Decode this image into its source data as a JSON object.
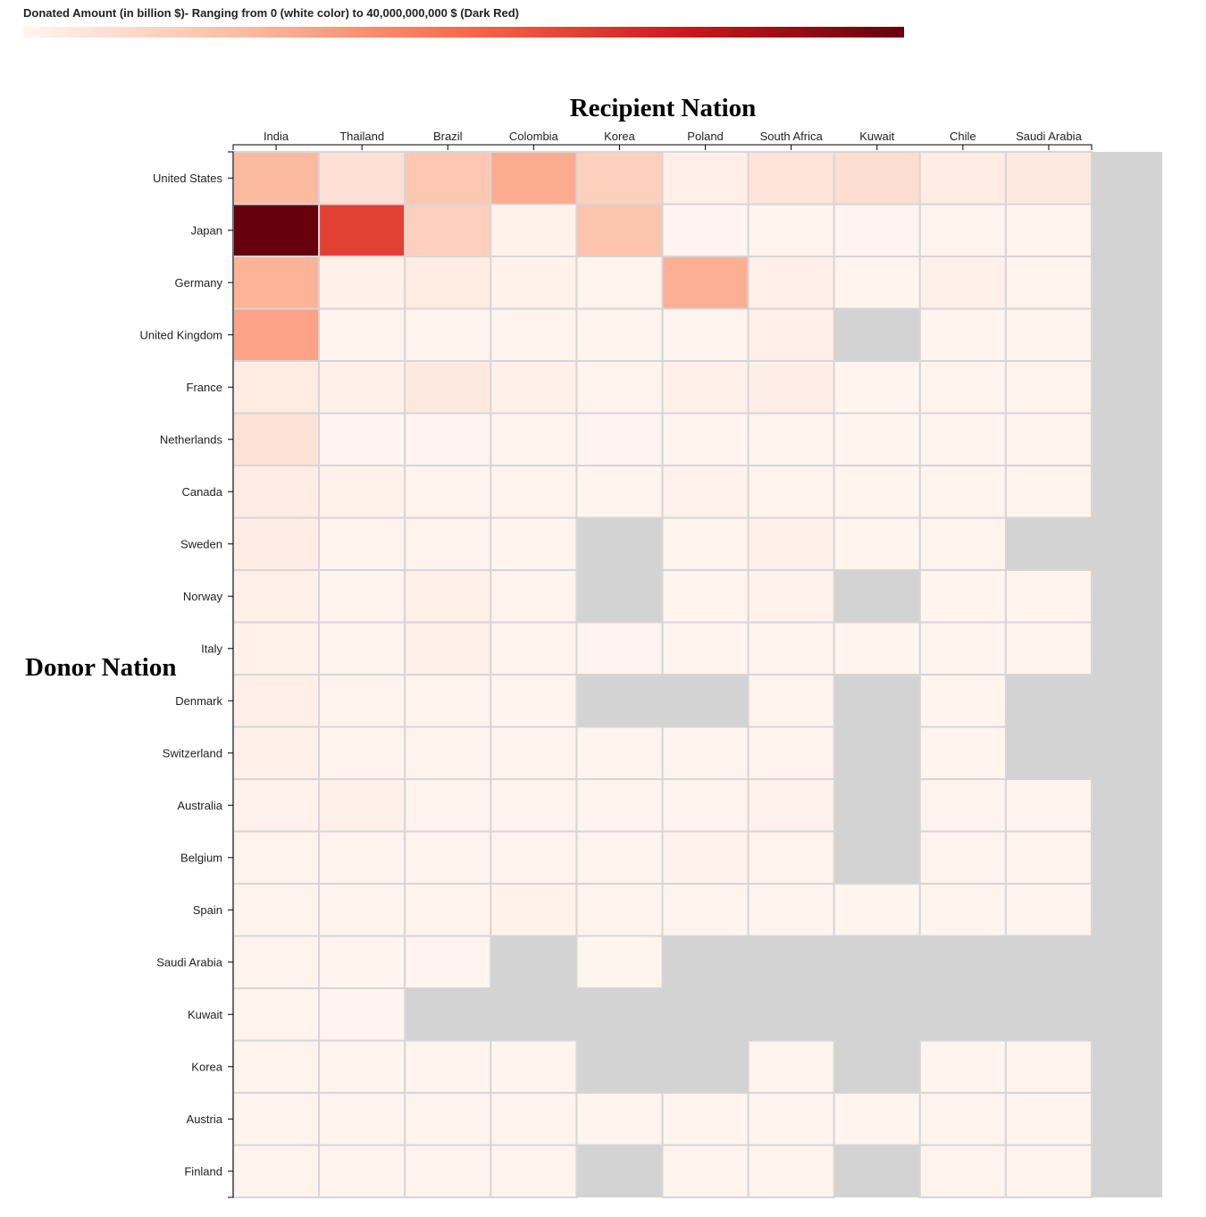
{
  "legend": {
    "title": "Donated Amount (in billion $)- Ranging from 0 (white color) to 40,000,000,000 $ (Dark Red)",
    "min_color": "#fff5f0",
    "max_color": "#67000d"
  },
  "chart_data": {
    "type": "heatmap",
    "title": "",
    "xlabel": "Recipient Nation",
    "ylabel": "Donor Nation",
    "color_scale": {
      "min": 0,
      "max": 40000000000,
      "colors": [
        "#fff5f0",
        "#fcbba1",
        "#fb6a4a",
        "#cb181d",
        "#67000d"
      ]
    },
    "missing_color": "#d3d3d3",
    "x_categories": [
      "India",
      "Thailand",
      "Brazil",
      "Colombia",
      "Korea",
      "Poland",
      "South Africa",
      "Kuwait",
      "Chile",
      "Saudi Arabia"
    ],
    "y_categories": [
      "United States",
      "Japan",
      "Germany",
      "United Kingdom",
      "France",
      "Netherlands",
      "Canada",
      "Sweden",
      "Norway",
      "Italy",
      "Denmark",
      "Switzerland",
      "Australia",
      "Belgium",
      "Spain",
      "Saudi Arabia",
      "Kuwait",
      "Korea",
      "Austria",
      "Finland"
    ],
    "values": [
      [
        10000000000,
        3500000000,
        8000000000,
        12000000000,
        6500000000,
        1000000000,
        3000000000,
        4000000000,
        1500000000,
        2000000000
      ],
      [
        40000000000,
        25000000000,
        6500000000,
        600000000,
        8500000000,
        100000000,
        400000000,
        150000000,
        300000000,
        200000000
      ],
      [
        11000000000,
        800000000,
        1800000000,
        600000000,
        300000000,
        11500000000,
        1000000000,
        200000000,
        700000000,
        200000000
      ],
      [
        13000000000,
        350000000,
        300000000,
        300000000,
        200000000,
        300000000,
        1000000000,
        null,
        250000000,
        200000000
      ],
      [
        1800000000,
        700000000,
        2000000000,
        900000000,
        300000000,
        800000000,
        1200000000,
        200000000,
        300000000,
        300000000
      ],
      [
        3200000000,
        100000000,
        150000000,
        300000000,
        150000000,
        200000000,
        400000000,
        200000000,
        200000000,
        200000000
      ],
      [
        1500000000,
        600000000,
        350000000,
        400000000,
        200000000,
        500000000,
        350000000,
        200000000,
        200000000,
        200000000
      ],
      [
        1400000000,
        350000000,
        300000000,
        250000000,
        null,
        250000000,
        700000000,
        200000000,
        300000000,
        null
      ],
      [
        900000000,
        350000000,
        700000000,
        300000000,
        null,
        250000000,
        450000000,
        null,
        250000000,
        250000000
      ],
      [
        600000000,
        250000000,
        900000000,
        300000000,
        150000000,
        200000000,
        300000000,
        250000000,
        250000000,
        250000000
      ],
      [
        1000000000,
        300000000,
        300000000,
        200000000,
        null,
        null,
        300000000,
        null,
        250000000,
        null
      ],
      [
        900000000,
        300000000,
        300000000,
        300000000,
        200000000,
        300000000,
        300000000,
        null,
        250000000,
        null
      ],
      [
        500000000,
        700000000,
        300000000,
        400000000,
        300000000,
        300000000,
        500000000,
        null,
        300000000,
        200000000
      ],
      [
        400000000,
        300000000,
        300000000,
        300000000,
        300000000,
        500000000,
        400000000,
        null,
        300000000,
        200000000
      ],
      [
        300000000,
        300000000,
        300000000,
        600000000,
        300000000,
        300000000,
        300000000,
        200000000,
        300000000,
        200000000
      ],
      [
        300000000,
        250000000,
        150000000,
        null,
        80000000,
        null,
        null,
        null,
        null,
        null
      ],
      [
        200000000,
        150000000,
        null,
        null,
        null,
        null,
        null,
        null,
        null,
        null
      ],
      [
        300000000,
        250000000,
        200000000,
        200000000,
        null,
        null,
        200000000,
        null,
        200000000,
        200000000
      ],
      [
        300000000,
        300000000,
        300000000,
        300000000,
        200000000,
        200000000,
        300000000,
        200000000,
        300000000,
        250000000
      ],
      [
        300000000,
        300000000,
        300000000,
        300000000,
        null,
        300000000,
        400000000,
        null,
        300000000,
        300000000
      ]
    ]
  }
}
